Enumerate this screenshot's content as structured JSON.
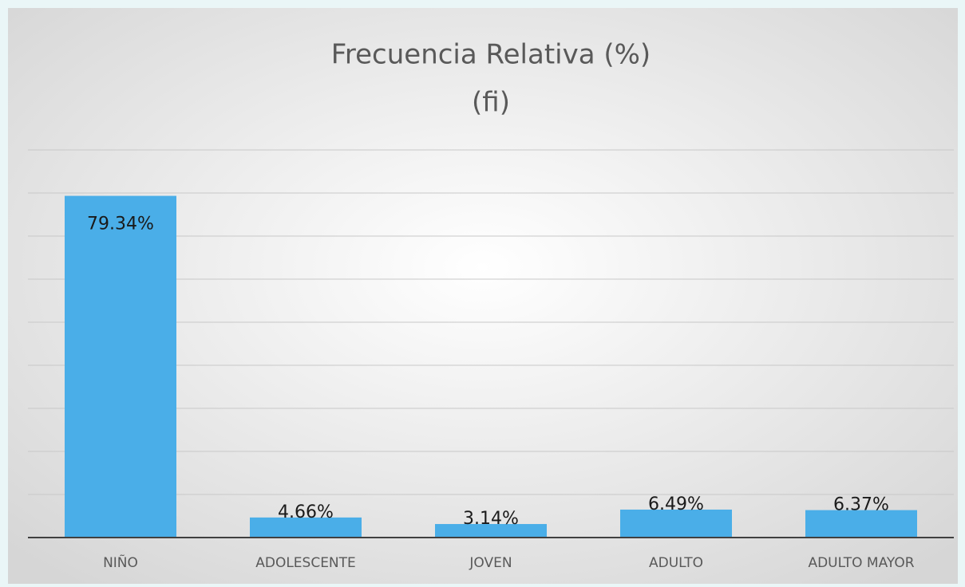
{
  "chart_data": {
    "type": "bar",
    "title": "Frecuencia Relativa (%)",
    "subtitle": "(fi)",
    "categories": [
      "NIÑO",
      "ADOLESCENTE",
      "JOVEN",
      "ADULTO",
      "ADULTO MAYOR"
    ],
    "values": [
      79.34,
      4.66,
      3.14,
      6.49,
      6.37
    ],
    "value_labels": [
      "79.34%",
      "4.66%",
      "3.14%",
      "6.49%",
      "6.37%"
    ],
    "color": "#4aaee8",
    "ylim": [
      0,
      90
    ],
    "yticks": [
      0,
      10,
      20,
      30,
      40,
      50,
      60,
      70,
      80,
      90
    ],
    "grid": true
  }
}
